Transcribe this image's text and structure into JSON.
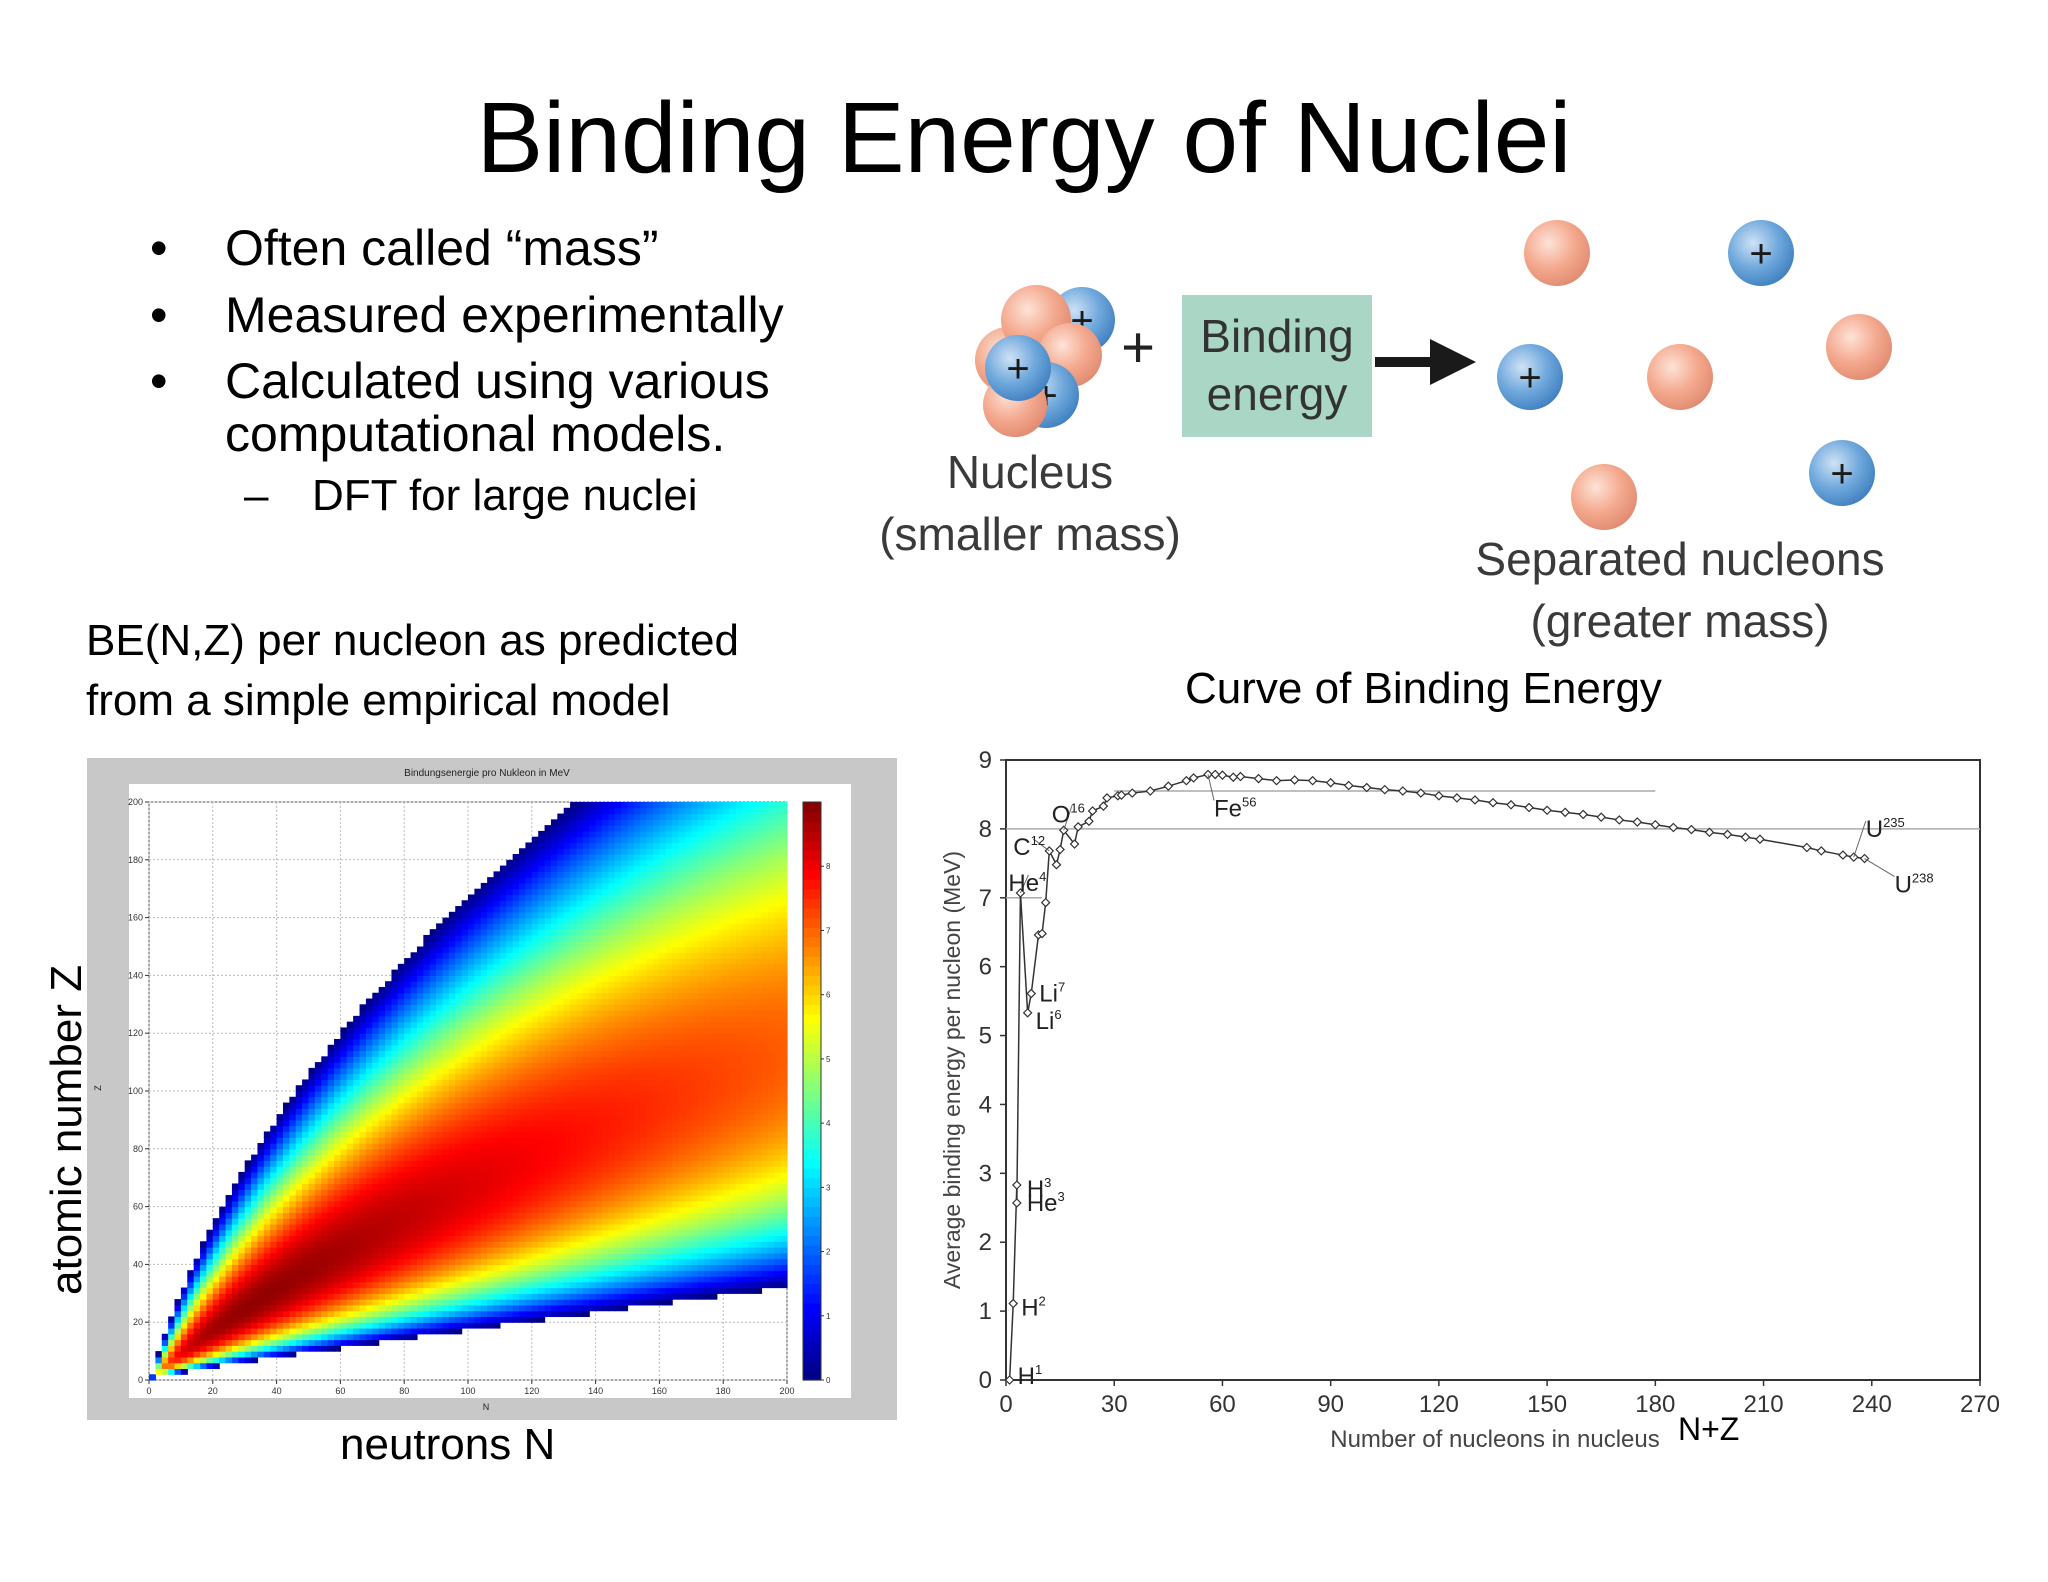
{
  "slide": {
    "title": "Binding Energy of Nuclei",
    "bullets": [
      "Often called “mass”",
      "Measured experimentally",
      "Calculated using various",
      "computational models."
    ],
    "sub_bullet": "DFT for large nuclei",
    "heatmap_caption_line1": "BE(N,Z) per nucleon as predicted",
    "heatmap_caption_line2": "from a simple empirical model",
    "curve_caption": "Curve of Binding Energy",
    "heatmap_ylabel": "atomic number Z",
    "heatmap_xlabel": "neutrons N",
    "curve_xlabel_extra": "N+Z"
  },
  "diagram": {
    "nucleus_label_1": "Nucleus",
    "nucleus_label_2": "(smaller mass)",
    "plus_sign": "+",
    "binding_label_1": "Binding",
    "binding_label_2": "energy",
    "separated_label_1": "Separated nucleons",
    "separated_label_2": "(greater mass)",
    "proton_symbol": "+",
    "colors": {
      "proton": "#5b9bd5",
      "neutron": "#f4a98e",
      "binding_box": "#a9d6c5"
    }
  },
  "chart_data": [
    {
      "type": "heatmap",
      "title": "Bindungsenergie pro Nukleon in MeV",
      "xlabel": "N",
      "ylabel": "Z",
      "xlim": [
        0,
        200
      ],
      "ylim": [
        0,
        200
      ],
      "x_ticks": [
        "0",
        "20",
        "40",
        "60",
        "80",
        "100",
        "120",
        "140",
        "160",
        "180",
        "200"
      ],
      "y_ticks": [
        "0",
        "20",
        "40",
        "60",
        "80",
        "100",
        "120",
        "140",
        "160",
        "180",
        "200"
      ],
      "colorbar_ticks": [
        "0",
        "1",
        "2",
        "3",
        "4",
        "5",
        "6",
        "7",
        "8"
      ],
      "colorbar_range": [
        0,
        9
      ],
      "grid": true,
      "colormap": "jet"
    },
    {
      "type": "line",
      "title": "",
      "xlabel": "Number of nucleons in nucleus",
      "ylabel": "Average binding energy per nucleon (MeV)",
      "xlim": [
        0,
        270
      ],
      "ylim": [
        0,
        9
      ],
      "x_ticks": [
        "0",
        "30",
        "60",
        "90",
        "120",
        "150",
        "180",
        "210",
        "240",
        "270"
      ],
      "y_ticks": [
        "0",
        "1",
        "2",
        "3",
        "4",
        "5",
        "6",
        "7",
        "8",
        "9"
      ],
      "series": [
        {
          "x": [
            1,
            2,
            3,
            3,
            4,
            6,
            7,
            9,
            10,
            11,
            12,
            14,
            15,
            16,
            19,
            20,
            23,
            24,
            27,
            28,
            31,
            32,
            35,
            40,
            45,
            50,
            52,
            56,
            58,
            60,
            63,
            65,
            70,
            75,
            80,
            85,
            90,
            95,
            100,
            105,
            110,
            115,
            120,
            125,
            130,
            135,
            140,
            145,
            150,
            155,
            160,
            165,
            170,
            175,
            180,
            185,
            190,
            195,
            200,
            205,
            209,
            222,
            226,
            232,
            235,
            238
          ],
          "y": [
            0,
            1.11,
            2.83,
            2.57,
            7.07,
            5.33,
            5.61,
            6.46,
            6.48,
            6.93,
            7.68,
            7.48,
            7.7,
            7.98,
            7.78,
            8.03,
            8.11,
            8.26,
            8.33,
            8.45,
            8.48,
            8.49,
            8.52,
            8.55,
            8.62,
            8.7,
            8.74,
            8.79,
            8.79,
            8.78,
            8.75,
            8.76,
            8.73,
            8.7,
            8.71,
            8.7,
            8.67,
            8.63,
            8.6,
            8.57,
            8.55,
            8.52,
            8.48,
            8.45,
            8.42,
            8.38,
            8.35,
            8.31,
            8.27,
            8.24,
            8.21,
            8.17,
            8.13,
            8.1,
            8.06,
            8.02,
            7.99,
            7.95,
            7.92,
            7.88,
            7.85,
            7.73,
            7.68,
            7.62,
            7.59,
            7.57
          ]
        }
      ],
      "reference_lines_y": [
        7.0,
        8.0,
        8.55
      ],
      "annotations": [
        {
          "text": "H",
          "sup": "1",
          "x": 1,
          "y": 0
        },
        {
          "text": "H",
          "sup": "2",
          "x": 2,
          "y": 1.11
        },
        {
          "text": "H",
          "sup": "3",
          "x": 3,
          "y": 2.83
        },
        {
          "text": "He",
          "sup": "3",
          "x": 3,
          "y": 2.57
        },
        {
          "text": "He",
          "sup": "4",
          "x": 4,
          "y": 7.07
        },
        {
          "text": "Li",
          "sup": "6",
          "x": 6,
          "y": 5.33
        },
        {
          "text": "Li",
          "sup": "7",
          "x": 7,
          "y": 5.61
        },
        {
          "text": "C",
          "sup": "12",
          "x": 12,
          "y": 7.68
        },
        {
          "text": "O",
          "sup": "16",
          "x": 16,
          "y": 7.98
        },
        {
          "text": "Fe",
          "sup": "56",
          "x": 56,
          "y": 8.79
        },
        {
          "text": "U",
          "sup": "235",
          "x": 235,
          "y": 7.59
        },
        {
          "text": "U",
          "sup": "238",
          "x": 238,
          "y": 7.57
        }
      ]
    }
  ]
}
